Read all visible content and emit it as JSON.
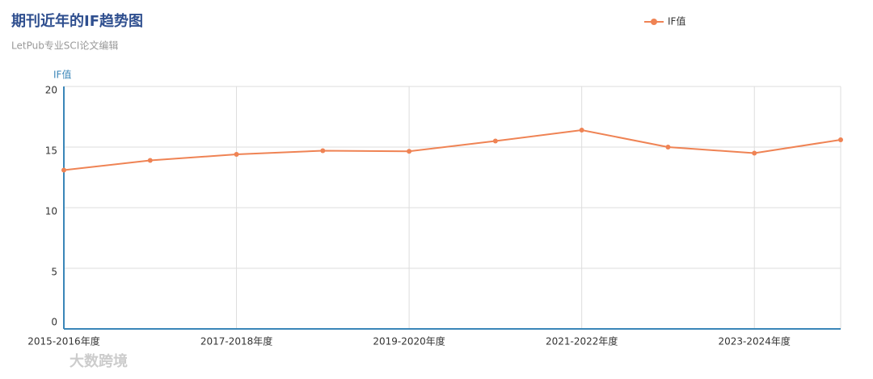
{
  "chart_data": {
    "type": "line",
    "title": "期刊近年的IF趋势图",
    "subtitle": "LetPub专业SCI论文编辑",
    "y_axis_label": "IF值",
    "categories": [
      "2015-2016年度",
      null,
      "2017-2018年度",
      null,
      "2019-2020年度",
      null,
      "2021-2022年度",
      null,
      "2023-2024年度",
      null
    ],
    "series": [
      {
        "name": "IF值",
        "color": "#ef8354",
        "values": [
          13.1,
          13.9,
          14.4,
          14.7,
          14.65,
          15.5,
          16.4,
          15.0,
          14.5,
          15.6
        ]
      }
    ],
    "ylim": [
      0,
      20
    ],
    "yticks": [
      0,
      5,
      10,
      15,
      20
    ],
    "grid": true,
    "legend": "top-right",
    "watermark": "大数跨境"
  }
}
